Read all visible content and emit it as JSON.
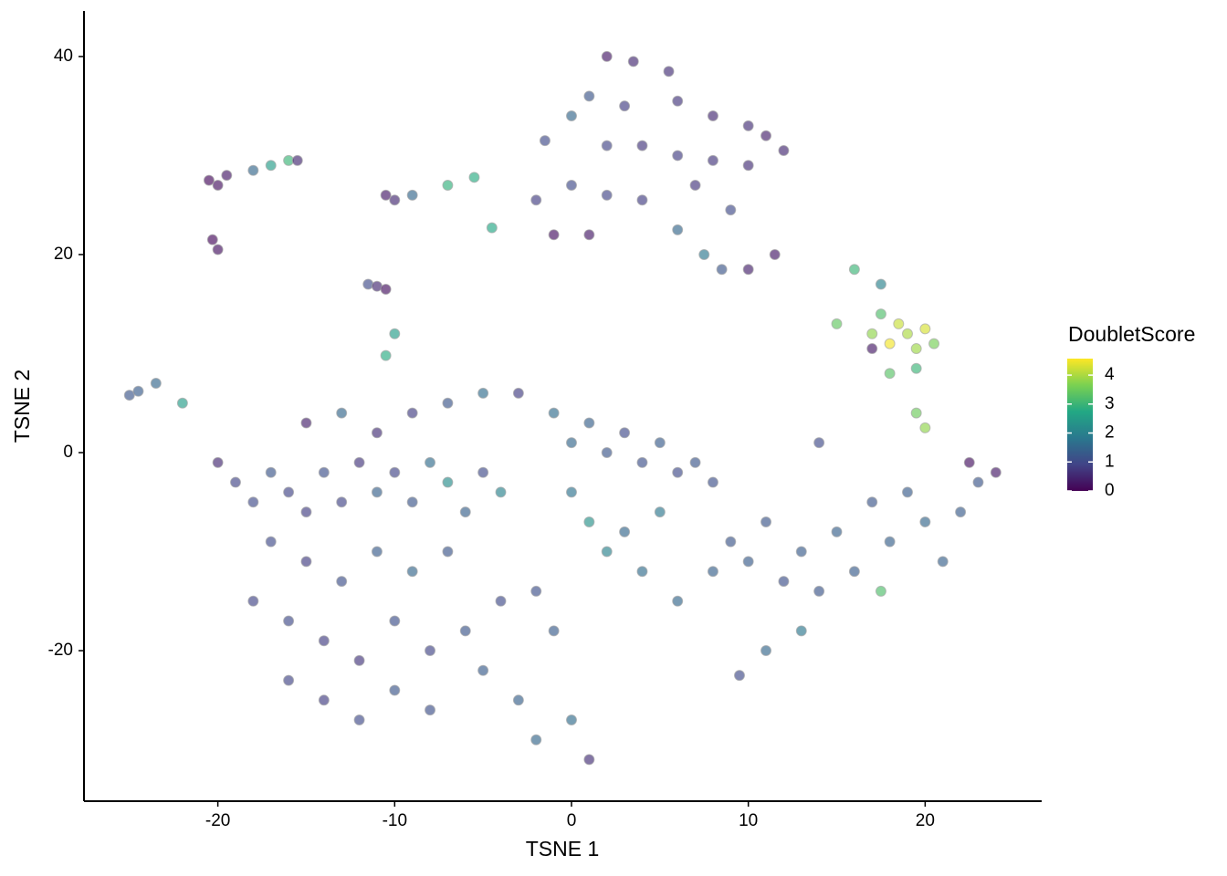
{
  "chart_data": {
    "type": "scatter",
    "xlabel": "TSNE 1",
    "ylabel": "TSNE 2",
    "colorbar_label": "DoubletScore",
    "xlim": [
      -27.57,
      26.59
    ],
    "ylim": [
      -35.2,
      44.6
    ],
    "xticks": [
      -20,
      -10,
      0,
      10,
      20
    ],
    "yticks": [
      -20,
      0,
      20,
      40
    ],
    "clim": [
      0,
      4.57
    ],
    "cticks": [
      0,
      1,
      2,
      3,
      4
    ],
    "grid": false,
    "colormap": [
      "#440154",
      "#414487",
      "#2a788e",
      "#22a884",
      "#7ad151",
      "#fde725"
    ],
    "x": [
      2,
      3.5,
      5.5,
      1,
      3,
      6,
      8,
      10,
      11,
      12,
      0,
      -1.5,
      2,
      4,
      6,
      8,
      10,
      -2,
      0,
      2,
      4,
      7,
      9,
      -1,
      1,
      6,
      7.5,
      8.5,
      10,
      11.5,
      -20.5,
      -20,
      -19.5,
      -18,
      -17,
      -16,
      -15.5,
      -20,
      -20.3,
      -10.5,
      -10,
      -9,
      -11.5,
      -11,
      -10.5,
      -10,
      -10.5,
      -7,
      -5.5,
      -4.5,
      -25,
      -24.5,
      -23.5,
      -22,
      17,
      17.5,
      18,
      18.5,
      19,
      19.5,
      20,
      20.5,
      18,
      19.5,
      16,
      17.5,
      15,
      17,
      19.5,
      20,
      -20,
      -19,
      -18,
      -17,
      -16,
      -15,
      -14,
      -13,
      -12,
      -11,
      -10,
      -9,
      -8,
      -7,
      -6,
      -5,
      -4,
      -15,
      -13,
      -11,
      -9,
      -7,
      -5,
      -3,
      -17,
      -15,
      -13,
      -11,
      -9,
      -7,
      -18,
      -16,
      -14,
      -12,
      -10,
      -8,
      -6,
      -4,
      -2,
      -1,
      -16,
      -14,
      -12,
      -10,
      -8,
      -5,
      -3,
      -2,
      0,
      1,
      -1,
      0,
      1,
      2,
      3,
      4,
      5,
      6,
      7,
      8,
      0,
      1,
      2,
      3,
      4,
      5,
      6,
      8,
      9,
      10,
      11,
      12,
      13,
      14,
      15,
      16,
      17,
      18,
      19,
      20,
      21,
      22,
      23,
      24,
      22.5,
      13,
      11,
      9.5,
      17.5,
      14
    ],
    "y": [
      40,
      39.5,
      38.5,
      36,
      35,
      35.5,
      34,
      33,
      32,
      30.5,
      34,
      31.5,
      31,
      31,
      30,
      29.5,
      29,
      25.5,
      27,
      26,
      25.5,
      27,
      24.5,
      22,
      22,
      22.5,
      20,
      18.5,
      18.5,
      20,
      27.5,
      27,
      28,
      28.5,
      29,
      29.5,
      29.5,
      20.5,
      21.5,
      26,
      25.5,
      26,
      17,
      16.8,
      16.5,
      12,
      9.8,
      27,
      27.8,
      22.7,
      5.8,
      6.2,
      7,
      5,
      12,
      14,
      11,
      13,
      12,
      10.5,
      12.5,
      11,
      8,
      8.5,
      18.5,
      17,
      13,
      10.5,
      4,
      2.5,
      -1,
      -3,
      -5,
      -2,
      -4,
      -6,
      -2,
      -5,
      -1,
      -4,
      -2,
      -5,
      -1,
      -3,
      -6,
      -2,
      -4,
      3,
      4,
      2,
      4,
      5,
      6,
      6,
      -9,
      -11,
      -13,
      -10,
      -12,
      -10,
      -15,
      -17,
      -19,
      -21,
      -17,
      -20,
      -18,
      -15,
      -14,
      -18,
      -23,
      -25,
      -27,
      -24,
      -26,
      -22,
      -25,
      -29,
      -27,
      -31,
      4,
      1,
      3,
      0,
      2,
      -1,
      1,
      -2,
      -1,
      -3,
      -4,
      -7,
      -10,
      -8,
      -12,
      -6,
      -15,
      -12,
      -9,
      -11,
      -7,
      -13,
      -10,
      -14,
      -8,
      -12,
      -5,
      -9,
      -4,
      -7,
      -11,
      -6,
      -3,
      -2,
      -1,
      -18,
      -20,
      -22.5,
      -14,
      1
    ],
    "score": [
      0.3,
      0.5,
      0.6,
      1.2,
      0.8,
      0.7,
      0.5,
      0.6,
      0.4,
      0.5,
      1.5,
      1.0,
      0.9,
      0.7,
      0.8,
      0.7,
      0.6,
      0.8,
      1.0,
      0.9,
      0.8,
      0.7,
      1.0,
      0.2,
      0.3,
      1.5,
      1.8,
      1.2,
      0.4,
      0.3,
      0.1,
      0.2,
      0.3,
      1.5,
      2.5,
      3.0,
      0.5,
      0.2,
      0.1,
      0.3,
      0.5,
      1.5,
      1.0,
      0.5,
      0.2,
      2.5,
      2.8,
      2.9,
      2.8,
      2.7,
      1.2,
      1.3,
      1.5,
      2.5,
      3.8,
      3.2,
      4.5,
      4.2,
      4.0,
      3.9,
      4.3,
      3.6,
      3.3,
      3.0,
      3.0,
      2.0,
      3.4,
      0.3,
      3.5,
      3.8,
      0.5,
      0.9,
      1.0,
      1.2,
      0.9,
      0.8,
      1.1,
      0.9,
      0.7,
      1.4,
      0.9,
      1.2,
      1.6,
      2.2,
      1.4,
      1.0,
      2.0,
      0.4,
      1.5,
      0.6,
      0.8,
      1.2,
      1.6,
      0.8,
      1.0,
      0.8,
      1.1,
      1.3,
      1.5,
      1.2,
      0.9,
      1.0,
      0.8,
      0.7,
      1.1,
      0.9,
      1.2,
      1.0,
      1.1,
      1.3,
      0.9,
      0.8,
      1.0,
      1.2,
      1.1,
      1.3,
      1.4,
      1.5,
      1.6,
      0.6,
      1.6,
      1.5,
      1.4,
      1.2,
      1.0,
      1.1,
      1.3,
      1.0,
      1.2,
      1.1,
      1.7,
      2.3,
      2.0,
      1.5,
      1.6,
      1.8,
      1.5,
      1.4,
      1.2,
      1.3,
      1.2,
      1.1,
      1.3,
      1.2,
      1.4,
      1.3,
      1.2,
      1.4,
      1.3,
      1.5,
      1.4,
      1.3,
      1.2,
      0.3,
      0.2,
      1.8,
      1.5,
      1.0,
      3.2,
      1.0
    ]
  }
}
